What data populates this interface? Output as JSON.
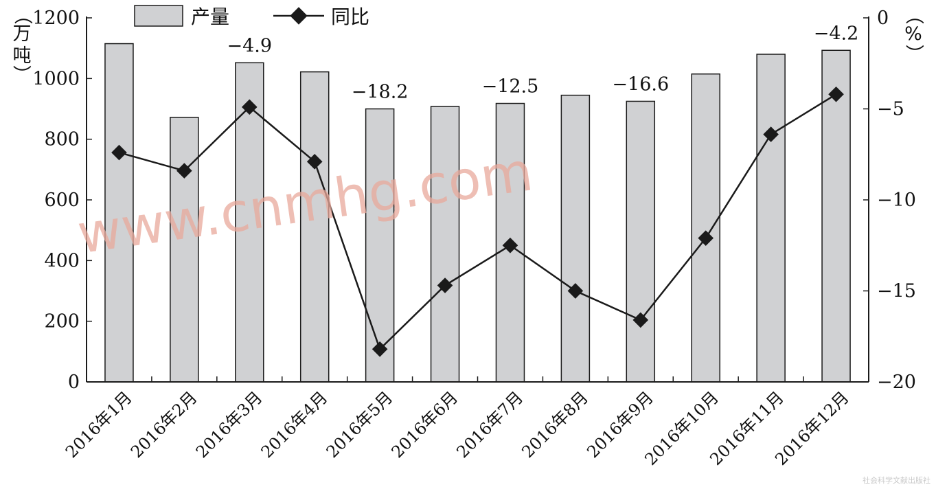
{
  "chart_data": {
    "type": "bar",
    "categories": [
      "2016年1月",
      "2016年2月",
      "2016年3月",
      "2016年4月",
      "2016年5月",
      "2016年6月",
      "2016年7月",
      "2016年8月",
      "2016年9月",
      "2016年10月",
      "2016年11月",
      "2016年12月"
    ],
    "series": [
      {
        "name": "产量",
        "type": "bar",
        "axis": "left",
        "values": [
          1115,
          872,
          1052,
          1022,
          900,
          908,
          918,
          945,
          925,
          1015,
          1080,
          1093
        ]
      },
      {
        "name": "同比",
        "type": "line",
        "axis": "right",
        "values": [
          -7.4,
          -8.4,
          -4.9,
          -7.9,
          -18.2,
          -14.7,
          -12.5,
          -15.0,
          -16.6,
          -12.1,
          -6.4,
          -4.2
        ]
      }
    ],
    "ylabel_left": "（万吨）",
    "ylabel_right": "（%）",
    "ylim_left": [
      0,
      1200
    ],
    "yticks_left": [
      0,
      200,
      400,
      600,
      800,
      1000,
      1200
    ],
    "ylim_right": [
      -20,
      0
    ],
    "yticks_right": [
      0,
      -5,
      -10,
      -15,
      -20
    ],
    "annotations": [
      {
        "index": 2,
        "text": "−4.9"
      },
      {
        "index": 4,
        "text": "−18.2"
      },
      {
        "index": 6,
        "text": "−12.5"
      },
      {
        "index": 8,
        "text": "−16.6"
      },
      {
        "index": 11,
        "text": "−4.2"
      }
    ],
    "legend_position": "top",
    "grid": false,
    "colors": {
      "bar_fill": "#d0d1d3",
      "bar_stroke": "#1a1a1a",
      "line": "#1a1a1a",
      "marker": "#1a1a1a"
    }
  },
  "watermark": "www.cnmhg.com",
  "credit": "社会科学文献出版社",
  "tick_labels_left": [
    "0",
    "200",
    "400",
    "600",
    "800",
    "1000",
    "1200"
  ],
  "tick_labels_right": [
    "0",
    "−5",
    "−10",
    "−15",
    "−20"
  ],
  "unit_left_chars": [
    "（",
    "万",
    "吨",
    "）"
  ],
  "unit_right_chars": [
    "（",
    "%",
    "）"
  ]
}
